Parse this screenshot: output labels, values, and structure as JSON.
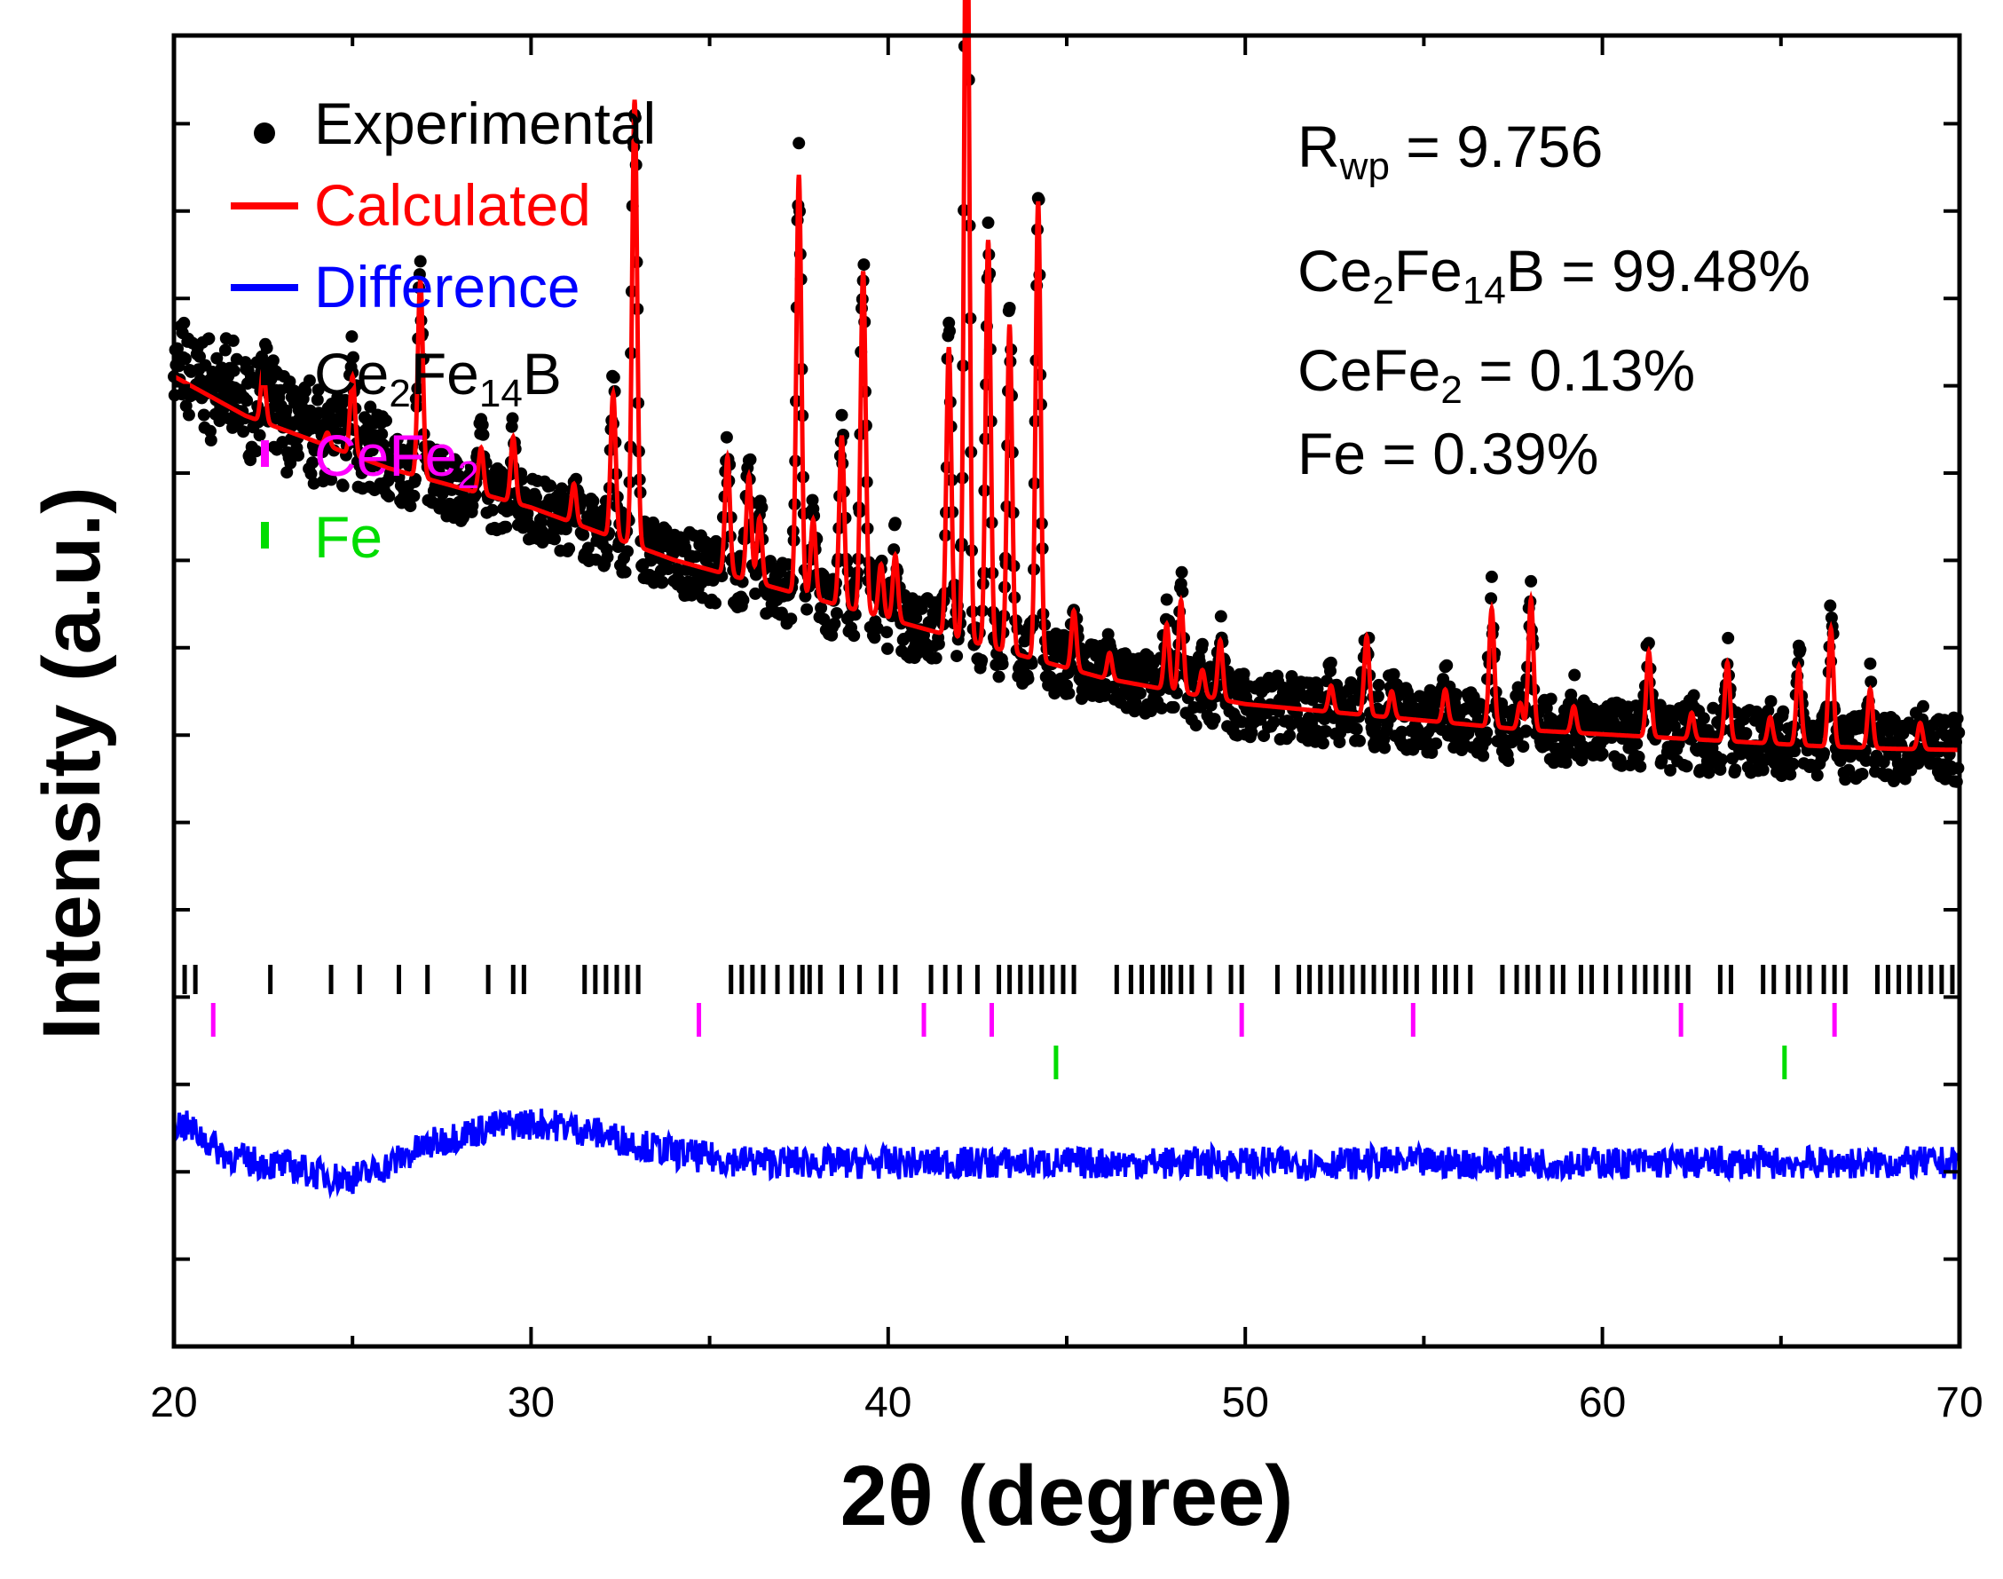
{
  "chart_data": {
    "type": "line",
    "title": "",
    "xlabel": "2θ (degree)",
    "ylabel": "Intensity (a.u.)",
    "xlim": [
      20,
      70
    ],
    "ylim": [
      0,
      1
    ],
    "x_ticks": [
      20,
      30,
      40,
      50,
      60,
      70
    ],
    "y_tick_labels_shown": false,
    "grid": false,
    "legend_position": "top-left",
    "legend": [
      {
        "label": "Experimental",
        "marker": "dot",
        "color": "#000000"
      },
      {
        "label": "Calculated",
        "marker": "line",
        "color": "#ff0000"
      },
      {
        "label": "Difference",
        "marker": "line",
        "color": "#0000ff"
      },
      {
        "label": "Ce2Fe14B",
        "marker": "tick",
        "color": "#000000"
      },
      {
        "label": "CeFe2",
        "marker": "tick",
        "color": "#ff00ff"
      },
      {
        "label": "Fe",
        "marker": "tick",
        "color": "#00dd00"
      }
    ],
    "annotations": [
      "Rwp = 9.756",
      "Ce2Fe14B = 99.48%",
      "CeFe2 = 0.13%",
      "Fe = 0.39%"
    ],
    "background": [
      [
        20,
        0.74
      ],
      [
        22,
        0.71
      ],
      [
        24,
        0.69
      ],
      [
        26,
        0.67
      ],
      [
        28,
        0.655
      ],
      [
        30,
        0.64
      ],
      [
        32,
        0.62
      ],
      [
        34,
        0.6
      ],
      [
        36,
        0.585
      ],
      [
        38,
        0.57
      ],
      [
        40,
        0.555
      ],
      [
        42,
        0.54
      ],
      [
        44,
        0.525
      ],
      [
        46,
        0.51
      ],
      [
        48,
        0.5
      ],
      [
        50,
        0.49
      ],
      [
        52,
        0.485
      ],
      [
        54,
        0.48
      ],
      [
        56,
        0.475
      ],
      [
        58,
        0.47
      ],
      [
        60,
        0.467
      ],
      [
        62,
        0.464
      ],
      [
        64,
        0.461
      ],
      [
        66,
        0.458
      ],
      [
        68,
        0.456
      ],
      [
        70,
        0.455
      ]
    ],
    "peaks": [
      {
        "x": 22.5,
        "h": 0.04
      },
      {
        "x": 24.3,
        "h": 0.01
      },
      {
        "x": 25.0,
        "h": 0.06
      },
      {
        "x": 26.9,
        "h": 0.15
      },
      {
        "x": 28.6,
        "h": 0.035
      },
      {
        "x": 29.5,
        "h": 0.05
      },
      {
        "x": 31.2,
        "h": 0.03
      },
      {
        "x": 32.3,
        "h": 0.11
      },
      {
        "x": 32.9,
        "h": 0.34
      },
      {
        "x": 35.5,
        "h": 0.09
      },
      {
        "x": 36.1,
        "h": 0.08
      },
      {
        "x": 36.4,
        "h": 0.05
      },
      {
        "x": 37.5,
        "h": 0.32
      },
      {
        "x": 37.9,
        "h": 0.06
      },
      {
        "x": 38.7,
        "h": 0.13
      },
      {
        "x": 39.3,
        "h": 0.26
      },
      {
        "x": 39.8,
        "h": 0.04
      },
      {
        "x": 40.2,
        "h": 0.05
      },
      {
        "x": 41.7,
        "h": 0.22
      },
      {
        "x": 42.2,
        "h": 0.64
      },
      {
        "x": 42.8,
        "h": 0.31
      },
      {
        "x": 43.4,
        "h": 0.25
      },
      {
        "x": 44.2,
        "h": 0.35
      },
      {
        "x": 45.2,
        "h": 0.045
      },
      {
        "x": 46.2,
        "h": 0.02
      },
      {
        "x": 47.8,
        "h": 0.05
      },
      {
        "x": 48.2,
        "h": 0.07
      },
      {
        "x": 48.8,
        "h": 0.02
      },
      {
        "x": 49.3,
        "h": 0.045
      },
      {
        "x": 52.4,
        "h": 0.02
      },
      {
        "x": 53.4,
        "h": 0.06
      },
      {
        "x": 54.1,
        "h": 0.02
      },
      {
        "x": 55.6,
        "h": 0.025
      },
      {
        "x": 56.9,
        "h": 0.09
      },
      {
        "x": 57.7,
        "h": 0.02
      },
      {
        "x": 58.0,
        "h": 0.1
      },
      {
        "x": 59.2,
        "h": 0.02
      },
      {
        "x": 61.3,
        "h": 0.065
      },
      {
        "x": 62.5,
        "h": 0.02
      },
      {
        "x": 63.5,
        "h": 0.06
      },
      {
        "x": 64.7,
        "h": 0.02
      },
      {
        "x": 65.5,
        "h": 0.06
      },
      {
        "x": 66.4,
        "h": 0.09
      },
      {
        "x": 67.5,
        "h": 0.045
      },
      {
        "x": 68.9,
        "h": 0.02
      }
    ],
    "reflections": {
      "Ce2Fe14B": [
        20.3,
        20.6,
        22.7,
        24.4,
        25.2,
        26.3,
        27.1,
        28.8,
        29.5,
        29.8,
        31.5,
        31.8,
        32.1,
        32.4,
        32.7,
        33.0,
        35.6,
        35.9,
        36.2,
        36.5,
        36.9,
        37.3,
        37.6,
        37.8,
        38.1,
        38.7,
        39.2,
        39.8,
        40.2,
        41.2,
        41.6,
        42.0,
        42.5,
        43.1,
        43.4,
        43.7,
        44.0,
        44.3,
        44.6,
        44.9,
        45.2,
        46.4,
        46.8,
        47.1,
        47.4,
        47.7,
        47.9,
        48.2,
        48.5,
        49.0,
        49.6,
        49.9,
        50.9,
        51.5,
        51.8,
        52.1,
        52.4,
        52.7,
        53.0,
        53.3,
        53.6,
        53.9,
        54.2,
        54.5,
        54.8,
        55.3,
        55.6,
        55.9,
        56.3,
        57.2,
        57.6,
        57.9,
        58.2,
        58.6,
        58.9,
        59.4,
        59.7,
        60.1,
        60.5,
        60.9,
        61.2,
        61.5,
        61.8,
        62.1,
        62.4,
        63.3,
        63.6,
        64.5,
        64.8,
        65.2,
        65.5,
        65.8,
        66.2,
        66.5,
        66.8,
        67.7,
        68.0,
        68.3,
        68.6,
        68.9,
        69.2,
        69.5,
        69.8,
        70.0
      ],
      "CeFe2": [
        21.1,
        34.7,
        41.0,
        42.9,
        49.9,
        54.7,
        62.2,
        66.5
      ],
      "Fe": [
        44.7,
        65.1
      ]
    }
  },
  "legend_labels": {
    "experimental": "Experimental",
    "calculated": "Calculated",
    "difference": "Difference",
    "ce2fe14b_base": "Ce",
    "ce2fe14b_sub1": "2",
    "ce2fe14b_mid": "Fe",
    "ce2fe14b_sub2": "14",
    "ce2fe14b_end": "B",
    "cefe2_base": "CeFe",
    "cefe2_sub": "2",
    "fe": "Fe"
  },
  "annotation_parts": {
    "rwp_base": "R",
    "rwp_sub": "wp",
    "rwp_value": " = 9.756",
    "ce2fe14b_base": "Ce",
    "ce2fe14b_sub1": "2",
    "ce2fe14b_mid": "Fe",
    "ce2fe14b_sub2": "14",
    "ce2fe14b_value": "B = 99.48%",
    "cefe2_base": "CeFe",
    "cefe2_sub": "2",
    "cefe2_value": " = 0.13%",
    "fe_text": "Fe = 0.39%"
  },
  "colors": {
    "experimental": "#000000",
    "calculated": "#ff0000",
    "difference": "#0000ff",
    "ce2fe14b_tick": "#000000",
    "cefe2_tick": "#ff00ff",
    "fe_tick": "#00dd00"
  }
}
